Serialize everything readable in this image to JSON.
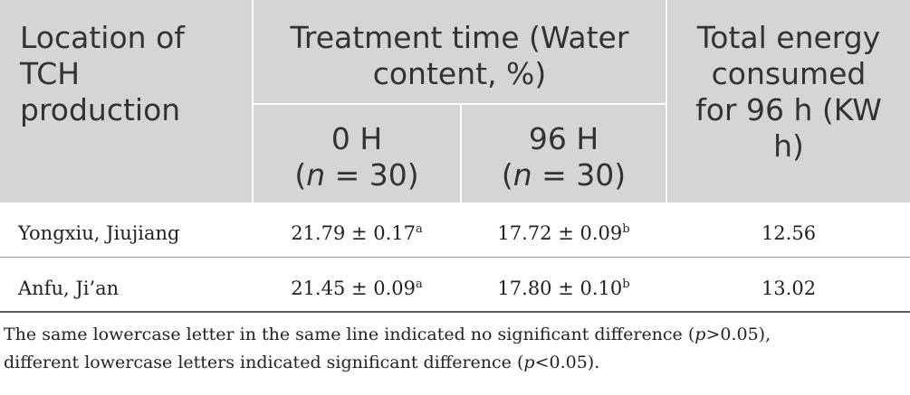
{
  "table": {
    "header": {
      "location": [
        "Location of",
        "TCH",
        "production"
      ],
      "treatment": [
        "Treatment time (Water",
        "content, %)"
      ],
      "energy": [
        "Total energy",
        "consumed",
        "for 96 h (KW",
        "h)"
      ],
      "sub_0h": {
        "label": "0 H",
        "n_prefix": "(",
        "n_var": "n",
        "n_suffix": " = 30)"
      },
      "sub_96h": {
        "label": "96 H",
        "n_prefix": "(",
        "n_var": "n",
        "n_suffix": " = 30)"
      }
    },
    "rows": [
      {
        "location": "Yongxiu, Jiujiang",
        "val_0h": "21.79 ± 0.17",
        "sup_0h": "a",
        "val_96h": "17.72 ± 0.09",
        "sup_96h": "b",
        "energy": "12.56"
      },
      {
        "location": "Anfu, Ji’an",
        "val_0h": "21.45 ± 0.09",
        "sup_0h": "a",
        "val_96h": "17.80 ± 0.10",
        "sup_96h": "b",
        "energy": "13.02"
      }
    ]
  },
  "footnote": {
    "line1_a": "The same lowercase letter in the same line indicated no significant difference (",
    "line1_var": "p",
    "line1_b": ">0.05),",
    "line2_a": "different lowercase letters indicated significant difference (",
    "line2_var": "p",
    "line2_b": "<0.05)."
  }
}
